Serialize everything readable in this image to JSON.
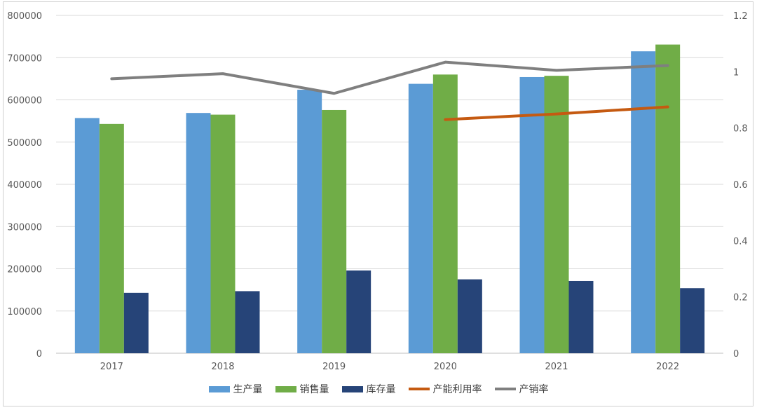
{
  "chart_data": {
    "type": "bar",
    "categories": [
      "2017",
      "2018",
      "2019",
      "2020",
      "2021",
      "2022"
    ],
    "y_left": {
      "ticks": [
        "0",
        "100000",
        "200000",
        "300000",
        "400000",
        "500000",
        "600000",
        "700000",
        "800000"
      ],
      "min": 0,
      "max": 800000
    },
    "y_right": {
      "ticks": [
        "0",
        "0.2",
        "0.4",
        "0.6",
        "0.8",
        "1",
        "1.2"
      ],
      "min": 0,
      "max": 1.2
    },
    "grid": true,
    "legend_position": "bottom",
    "series": [
      {
        "name": "生产量",
        "type": "bar",
        "axis": "left",
        "color": "#5b9bd5",
        "values": [
          557000,
          569000,
          624000,
          638000,
          654000,
          715000
        ]
      },
      {
        "name": "销售量",
        "type": "bar",
        "axis": "left",
        "color": "#70ad47",
        "values": [
          543000,
          565000,
          576000,
          660000,
          657000,
          731000
        ]
      },
      {
        "name": "库存量",
        "type": "bar",
        "axis": "left",
        "color": "#264478",
        "values": [
          143000,
          147000,
          196000,
          175000,
          171000,
          154000
        ]
      },
      {
        "name": "产能利用率",
        "type": "line",
        "axis": "right",
        "color": "#c55a11",
        "values": [
          null,
          null,
          null,
          0.83,
          0.85,
          0.875
        ]
      },
      {
        "name": "产销率",
        "type": "line",
        "axis": "right",
        "color": "#7f7f7f",
        "values": [
          0.975,
          0.993,
          0.923,
          1.034,
          1.005,
          1.022
        ]
      }
    ]
  }
}
